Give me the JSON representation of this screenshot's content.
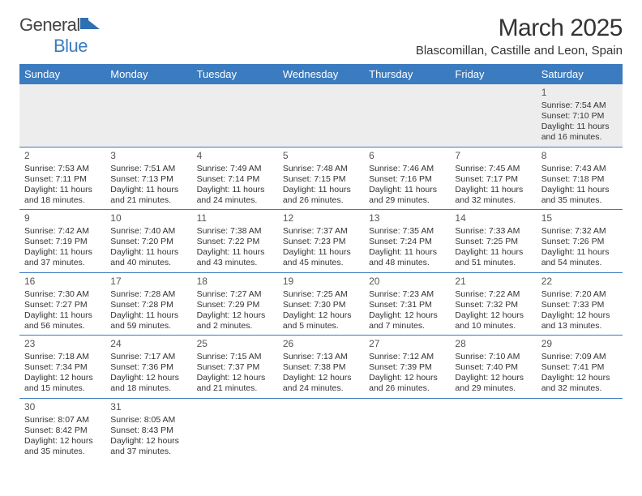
{
  "logo": {
    "word1": "General",
    "word2": "Blue",
    "shape_color": "#2f6fb3"
  },
  "title": {
    "month": "March 2025",
    "location": "Blascomillan, Castille and Leon, Spain"
  },
  "colors": {
    "header_bg": "#3b7bbf",
    "header_text": "#ffffff",
    "rule": "#3b7bbf",
    "firstrow_bg": "#ededed",
    "text": "#333333",
    "daynum": "#555555"
  },
  "weekdays": [
    "Sunday",
    "Monday",
    "Tuesday",
    "Wednesday",
    "Thursday",
    "Friday",
    "Saturday"
  ],
  "weeks": [
    [
      null,
      null,
      null,
      null,
      null,
      null,
      {
        "n": "1",
        "sr": "7:54 AM",
        "ss": "7:10 PM",
        "dh": "11",
        "dm": "16"
      }
    ],
    [
      {
        "n": "2",
        "sr": "7:53 AM",
        "ss": "7:11 PM",
        "dh": "11",
        "dm": "18"
      },
      {
        "n": "3",
        "sr": "7:51 AM",
        "ss": "7:13 PM",
        "dh": "11",
        "dm": "21"
      },
      {
        "n": "4",
        "sr": "7:49 AM",
        "ss": "7:14 PM",
        "dh": "11",
        "dm": "24"
      },
      {
        "n": "5",
        "sr": "7:48 AM",
        "ss": "7:15 PM",
        "dh": "11",
        "dm": "26"
      },
      {
        "n": "6",
        "sr": "7:46 AM",
        "ss": "7:16 PM",
        "dh": "11",
        "dm": "29"
      },
      {
        "n": "7",
        "sr": "7:45 AM",
        "ss": "7:17 PM",
        "dh": "11",
        "dm": "32"
      },
      {
        "n": "8",
        "sr": "7:43 AM",
        "ss": "7:18 PM",
        "dh": "11",
        "dm": "35"
      }
    ],
    [
      {
        "n": "9",
        "sr": "7:42 AM",
        "ss": "7:19 PM",
        "dh": "11",
        "dm": "37"
      },
      {
        "n": "10",
        "sr": "7:40 AM",
        "ss": "7:20 PM",
        "dh": "11",
        "dm": "40"
      },
      {
        "n": "11",
        "sr": "7:38 AM",
        "ss": "7:22 PM",
        "dh": "11",
        "dm": "43"
      },
      {
        "n": "12",
        "sr": "7:37 AM",
        "ss": "7:23 PM",
        "dh": "11",
        "dm": "45"
      },
      {
        "n": "13",
        "sr": "7:35 AM",
        "ss": "7:24 PM",
        "dh": "11",
        "dm": "48"
      },
      {
        "n": "14",
        "sr": "7:33 AM",
        "ss": "7:25 PM",
        "dh": "11",
        "dm": "51"
      },
      {
        "n": "15",
        "sr": "7:32 AM",
        "ss": "7:26 PM",
        "dh": "11",
        "dm": "54"
      }
    ],
    [
      {
        "n": "16",
        "sr": "7:30 AM",
        "ss": "7:27 PM",
        "dh": "11",
        "dm": "56"
      },
      {
        "n": "17",
        "sr": "7:28 AM",
        "ss": "7:28 PM",
        "dh": "11",
        "dm": "59"
      },
      {
        "n": "18",
        "sr": "7:27 AM",
        "ss": "7:29 PM",
        "dh": "12",
        "dm": "2"
      },
      {
        "n": "19",
        "sr": "7:25 AM",
        "ss": "7:30 PM",
        "dh": "12",
        "dm": "5"
      },
      {
        "n": "20",
        "sr": "7:23 AM",
        "ss": "7:31 PM",
        "dh": "12",
        "dm": "7"
      },
      {
        "n": "21",
        "sr": "7:22 AM",
        "ss": "7:32 PM",
        "dh": "12",
        "dm": "10"
      },
      {
        "n": "22",
        "sr": "7:20 AM",
        "ss": "7:33 PM",
        "dh": "12",
        "dm": "13"
      }
    ],
    [
      {
        "n": "23",
        "sr": "7:18 AM",
        "ss": "7:34 PM",
        "dh": "12",
        "dm": "15"
      },
      {
        "n": "24",
        "sr": "7:17 AM",
        "ss": "7:36 PM",
        "dh": "12",
        "dm": "18"
      },
      {
        "n": "25",
        "sr": "7:15 AM",
        "ss": "7:37 PM",
        "dh": "12",
        "dm": "21"
      },
      {
        "n": "26",
        "sr": "7:13 AM",
        "ss": "7:38 PM",
        "dh": "12",
        "dm": "24"
      },
      {
        "n": "27",
        "sr": "7:12 AM",
        "ss": "7:39 PM",
        "dh": "12",
        "dm": "26"
      },
      {
        "n": "28",
        "sr": "7:10 AM",
        "ss": "7:40 PM",
        "dh": "12",
        "dm": "29"
      },
      {
        "n": "29",
        "sr": "7:09 AM",
        "ss": "7:41 PM",
        "dh": "12",
        "dm": "32"
      }
    ],
    [
      {
        "n": "30",
        "sr": "8:07 AM",
        "ss": "8:42 PM",
        "dh": "12",
        "dm": "35"
      },
      {
        "n": "31",
        "sr": "8:05 AM",
        "ss": "8:43 PM",
        "dh": "12",
        "dm": "37"
      },
      null,
      null,
      null,
      null,
      null
    ]
  ],
  "labels": {
    "sunrise": "Sunrise:",
    "sunset": "Sunset:",
    "daylight": "Daylight:",
    "hours": "hours",
    "and": "and",
    "minutes": "minutes."
  }
}
